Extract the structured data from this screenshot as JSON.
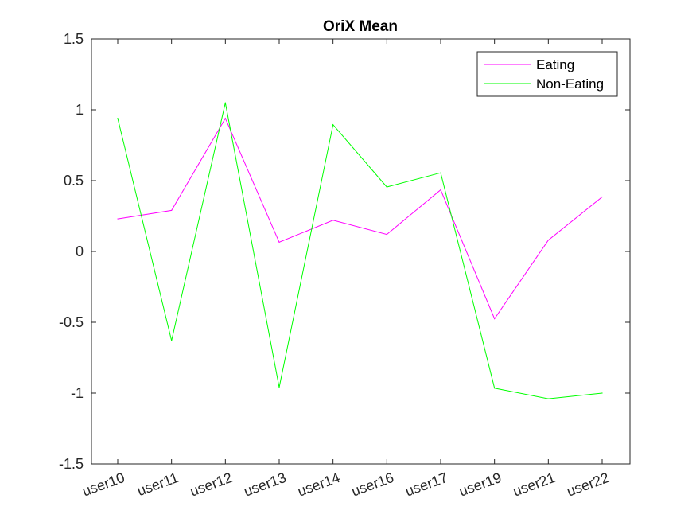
{
  "chart_data": {
    "type": "line",
    "title": "OriX Mean",
    "xlabel": "",
    "ylabel": "",
    "categories": [
      "user10",
      "user11",
      "user12",
      "user13",
      "user14",
      "user16",
      "user17",
      "user19",
      "user21",
      "user22"
    ],
    "ylim": [
      -1.5,
      1.5
    ],
    "yticks": [
      "-1.5",
      "-1",
      "-0.5",
      "0",
      "0.5",
      "1",
      "1.5"
    ],
    "grid": false,
    "legend_position": "top-right",
    "series": [
      {
        "name": "Eating",
        "color": "#ff00ff",
        "values": [
          0.23,
          0.29,
          0.94,
          0.065,
          0.22,
          0.12,
          0.435,
          -0.475,
          0.08,
          0.385
        ]
      },
      {
        "name": "Non-Eating",
        "color": "#00ff00",
        "values": [
          0.94,
          -0.63,
          1.05,
          -0.96,
          0.895,
          0.455,
          0.555,
          -0.965,
          -1.04,
          -1.0
        ]
      }
    ]
  }
}
